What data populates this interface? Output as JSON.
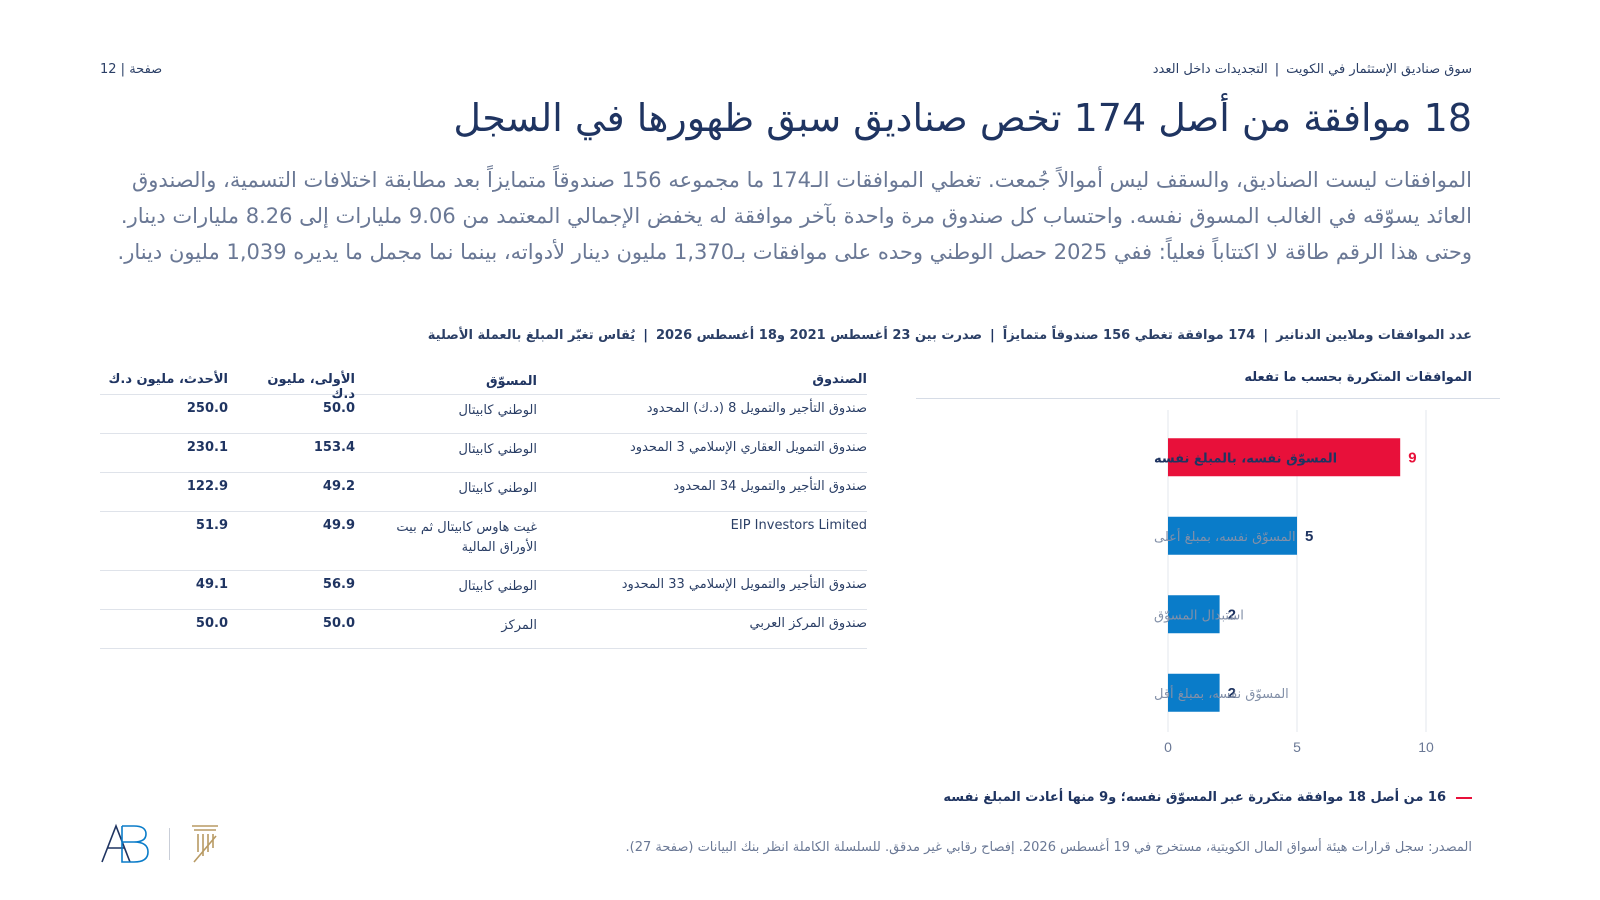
{
  "header": {
    "breadcrumb_report": "سوق صناديق الإستثمار في الكويت",
    "breadcrumb_section": "التجديدات داخل العدد",
    "page_label": "صفحة",
    "page_number": "12"
  },
  "headline": "18 موافقة من أصل 174 تخص صناديق سبق ظهورها في السجل",
  "intro": "الموافقات ليست الصناديق، والسقف ليس أموالاً جُمعت. تغطي الموافقات الـ174 ما مجموعه 156 صندوقاً متمايزاً بعد مطابقة اختلافات التسمية، والصندوق العائد يسوّقه في الغالب المسوق نفسه. واحتساب كل صندوق مرة واحدة بآخر موافقة له يخفض الإجمالي المعتمد من 9.06 مليارات إلى 8.26 مليارات دينار. وحتى هذا الرقم طاقة لا اكتتاباً فعلياً: ففي 2025 حصل الوطني وحده على موافقات بـ1,370 مليون دينار لأدواته، بينما نما مجمل ما يديره 1,039 مليون دينار.",
  "meta": {
    "item1": "عدد الموافقات وملايين الدنانير",
    "item2": "174 موافقة تغطي 156 صندوقاً متمايزاً",
    "item3": "صدرت بين 23 أغسطس 2021 و18 أغسطس 2026",
    "item4": "يُقاس تغيّر المبلغ بالعملة الأصلية"
  },
  "chart_data": {
    "type": "bar",
    "orientation": "horizontal",
    "title": "الموافقات المتكررة بحسب ما تفعله",
    "categories": [
      "المسوّق نفسه، بالمبلغ نفسه",
      "المسوّق نفسه، بمبلغ أعلى",
      "استبدال المسوّق",
      "المسوّق نفسه، بمبلغ أقل"
    ],
    "values": [
      9,
      5,
      2,
      2
    ],
    "value_labels": [
      "9",
      "5",
      "2",
      "2"
    ],
    "highlight_index": 0,
    "colors": {
      "highlight": "#e8103a",
      "default": "#0a7cc9"
    },
    "xlim": [
      0,
      10
    ],
    "xticks": [
      "0",
      "5",
      "10"
    ],
    "grid": true
  },
  "table": {
    "headers": {
      "fund": "الصندوق",
      "manager": "المسوّق",
      "first": "الأولى، مليون د.ك",
      "latest": "الأحدث، مليون د.ك"
    },
    "rows": [
      {
        "fund": "صندوق التأجير والتمويل 8 (د.ك) المحدود",
        "manager": "الوطني كابيتال",
        "first": "50.0",
        "latest": "250.0"
      },
      {
        "fund": "صندوق التمويل العقاري الإسلامي 3 المحدود",
        "manager": "الوطني كابيتال",
        "first": "153.4",
        "latest": "230.1"
      },
      {
        "fund": "صندوق التأجير والتمويل 34 المحدود",
        "manager": "الوطني كابيتال",
        "first": "49.2",
        "latest": "122.9"
      },
      {
        "fund": "EIP Investors Limited",
        "manager": "غيت هاوس كابيتال ثم بيت الأوراق المالية",
        "first": "49.9",
        "latest": "51.9"
      },
      {
        "fund": "صندوق التأجير والتمويل الإسلامي 33 المحدود",
        "manager": "الوطني كابيتال",
        "first": "56.9",
        "latest": "49.1"
      },
      {
        "fund": "صندوق المركز العربي",
        "manager": "المركز",
        "first": "50.0",
        "latest": "50.0"
      }
    ]
  },
  "callout": "16 من أصل 18 موافقة متكررة عبر المسوّق نفسه؛ و9 منها أعادت المبلغ نفسه",
  "source": "المصدر: سجل قرارات هيئة أسواق المال الكويتية، مستخرج في 19 أغسطس 2026. إفصاح رقابي غير مدقق. للسلسلة الكاملة انظر بنك البيانات (صفحة 27).",
  "logo": {
    "monogram": "AB"
  }
}
